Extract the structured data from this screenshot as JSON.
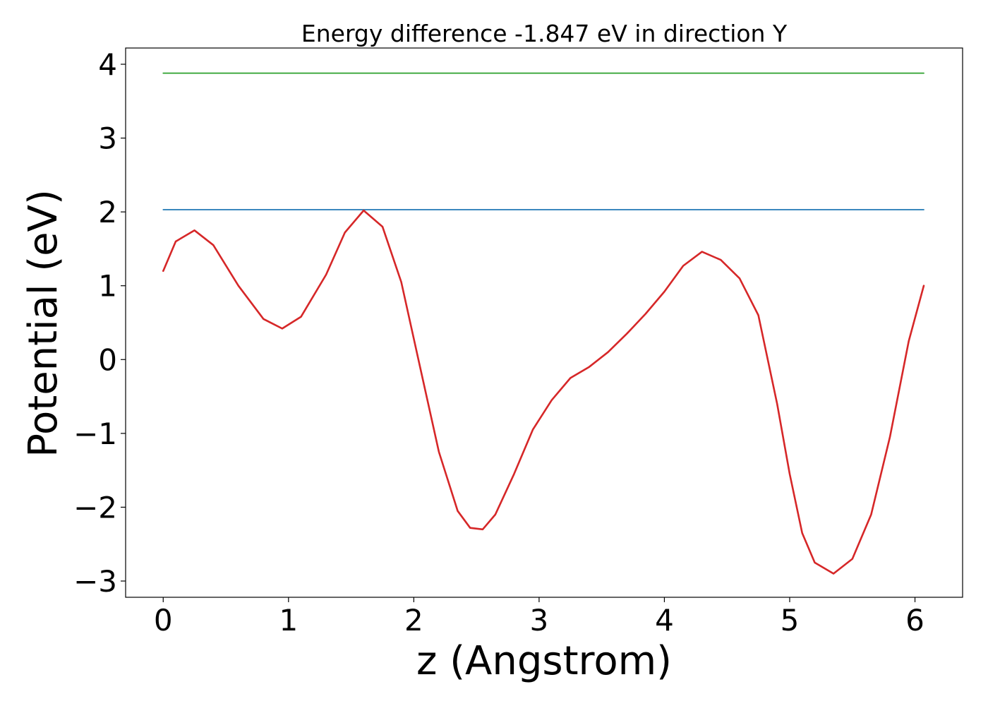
{
  "chart_data": {
    "type": "line",
    "title": "Energy difference -1.847 eV in direction Y",
    "xlabel": "z (Angstrom)",
    "ylabel": "Potential (eV)",
    "xlim": [
      -0.3,
      6.38
    ],
    "ylim": [
      -3.22,
      4.22
    ],
    "xticks": [
      0,
      1,
      2,
      3,
      4,
      5,
      6
    ],
    "xtick_labels": [
      "0",
      "1",
      "2",
      "3",
      "4",
      "5",
      "6"
    ],
    "yticks": [
      -3,
      -2,
      -1,
      0,
      1,
      2,
      3,
      4
    ],
    "ytick_labels": [
      "−3",
      "−2",
      "−1",
      "0",
      "1",
      "2",
      "3",
      "4"
    ],
    "grid": false,
    "legend": false,
    "series": [
      {
        "color": "#2ca02c",
        "x": [
          0,
          6.07
        ],
        "y": [
          3.88,
          3.88
        ]
      },
      {
        "color": "#1f77b4",
        "x": [
          0,
          6.07
        ],
        "y": [
          2.03,
          2.03
        ]
      },
      {
        "color": "#d62728",
        "x": [
          0,
          0.1,
          0.25,
          0.4,
          0.6,
          0.8,
          0.95,
          1.1,
          1.3,
          1.45,
          1.6,
          1.75,
          1.9,
          2.05,
          2.2,
          2.35,
          2.45,
          2.55,
          2.65,
          2.8,
          2.95,
          3.1,
          3.25,
          3.4,
          3.55,
          3.7,
          3.85,
          4.0,
          4.15,
          4.3,
          4.45,
          4.6,
          4.75,
          4.9,
          5.0,
          5.1,
          5.2,
          5.35,
          5.5,
          5.65,
          5.8,
          5.95,
          6.07
        ],
        "y": [
          1.2,
          1.6,
          1.75,
          1.55,
          1.0,
          0.55,
          0.42,
          0.58,
          1.15,
          1.72,
          2.02,
          1.8,
          1.05,
          -0.1,
          -1.25,
          -2.05,
          -2.28,
          -2.3,
          -2.1,
          -1.55,
          -0.95,
          -0.55,
          -0.25,
          -0.1,
          0.1,
          0.35,
          0.62,
          0.92,
          1.27,
          1.46,
          1.35,
          1.1,
          0.6,
          -0.6,
          -1.55,
          -2.35,
          -2.75,
          -2.9,
          -2.7,
          -2.1,
          -1.05,
          0.25,
          1.0
        ]
      }
    ]
  }
}
